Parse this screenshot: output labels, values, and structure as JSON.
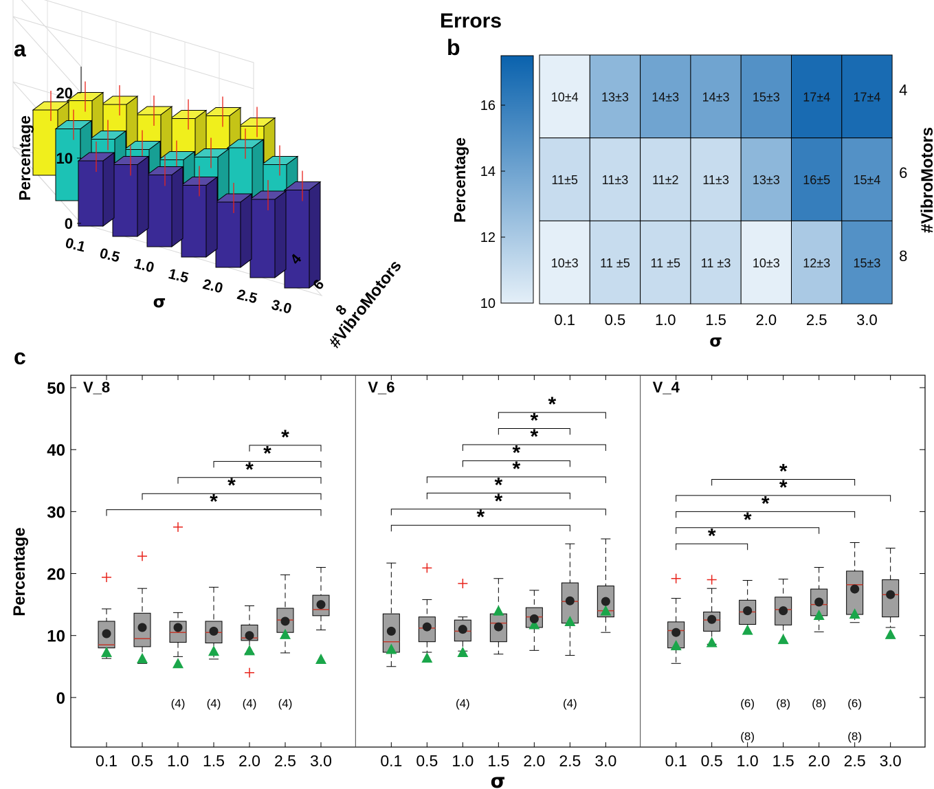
{
  "figure": {
    "title": "Errors",
    "panel_labels": [
      "a",
      "b",
      "c"
    ]
  },
  "chart_data": [
    {
      "panel": "a",
      "type": "bar",
      "subtype": "3d-bar",
      "categories": [
        "0.1",
        "0.5",
        "1.0",
        "1.5",
        "2.0",
        "2.5",
        "3.0"
      ],
      "xlabel": "σ",
      "ylabel": "#VibroMotors",
      "zlabel": "Percentage",
      "zlim": [
        0,
        20
      ],
      "zticks": [
        "0",
        "10",
        "20"
      ],
      "series": [
        {
          "name": "8",
          "color": "#3a2a96",
          "values": [
            10,
            11,
            11,
            11,
            10,
            12,
            15
          ]
        },
        {
          "name": "6",
          "color": "#1cc2b5",
          "values": [
            11,
            11,
            11,
            11,
            13,
            16,
            15
          ]
        },
        {
          "name": "4",
          "color": "#f0ef1c",
          "values": [
            10,
            13,
            14,
            14,
            15,
            17,
            17
          ]
        }
      ],
      "grid": true
    },
    {
      "panel": "b",
      "type": "heatmap",
      "x": [
        "0.1",
        "0.5",
        "1.0",
        "1.5",
        "2.0",
        "2.5",
        "3.0"
      ],
      "y": [
        "4",
        "6",
        "8"
      ],
      "xlabel": "σ",
      "ylabel_right": "#VibroMotors",
      "colorbar_label": "Percentage",
      "colorbar_range": [
        10,
        17.5
      ],
      "colorbar_ticks": [
        "10",
        "12",
        "14",
        "16"
      ],
      "means": [
        [
          10,
          13,
          14,
          14,
          15,
          17,
          17
        ],
        [
          11,
          11,
          11,
          11,
          13,
          16,
          15
        ],
        [
          10,
          11,
          11,
          11,
          10,
          12,
          15
        ]
      ],
      "cells": [
        [
          "10±4",
          "13±3",
          "14±3",
          "14±3",
          "15±3",
          "17±4",
          "17±4"
        ],
        [
          "11±5",
          "11±3",
          "11±2",
          "11±3",
          "13±3",
          "16±5",
          "15±4"
        ],
        [
          "10±3",
          "11 ±5",
          "11 ±5",
          "11 ±3",
          "10±3",
          "12±3",
          "15±3"
        ]
      ],
      "colorscale": [
        "#e4eff8",
        "#0a62ad"
      ]
    },
    {
      "panel": "c",
      "type": "box",
      "ylabel": "Percentage",
      "xlabel": "σ",
      "ylim": [
        -8,
        52
      ],
      "yticks": [
        "0",
        "10",
        "20",
        "30",
        "40",
        "50"
      ],
      "categories": [
        "0.1",
        "0.5",
        "1.0",
        "1.5",
        "2.0",
        "2.5",
        "3.0"
      ],
      "marker_colors": {
        "mean": "#222222",
        "triangle": "#1aa64a",
        "outlier": "#e8241c",
        "median": "#c0392b",
        "box": "#a0a0a0"
      },
      "panels": [
        {
          "name": "V_8",
          "boxes": [
            {
              "q1": 8,
              "median": 8.5,
              "q3": 12.3,
              "wlo": 6.3,
              "whi": 14.3,
              "mean": 10.3,
              "tri": 7.3,
              "outliers": [
                19.4
              ]
            },
            {
              "q1": 8.2,
              "median": 9.5,
              "q3": 13.6,
              "wlo": 5.5,
              "whi": 17.6,
              "mean": 11.3,
              "tri": 6.3,
              "outliers": [
                22.8
              ]
            },
            {
              "q1": 8.9,
              "median": 10.5,
              "q3": 12.3,
              "wlo": 6.6,
              "whi": 13.7,
              "mean": 11.3,
              "tri": 5.5,
              "outliers": [
                27.5
              ]
            },
            {
              "q1": 8.8,
              "median": 10.5,
              "q3": 12.3,
              "wlo": 6.2,
              "whi": 17.8,
              "mean": 10.7,
              "tri": 7.5,
              "outliers": []
            },
            {
              "q1": 9.2,
              "median": 9.6,
              "q3": 11.7,
              "wlo": 7.1,
              "whi": 14.8,
              "mean": 10.0,
              "tri": 7.6,
              "outliers": [
                4.0
              ]
            },
            {
              "q1": 10.5,
              "median": 12.5,
              "q3": 14.4,
              "wlo": 7.2,
              "whi": 19.8,
              "mean": 12.3,
              "tri": 10.2,
              "outliers": []
            },
            {
              "q1": 13.2,
              "median": 14.2,
              "q3": 16.5,
              "wlo": 10.9,
              "whi": 21.0,
              "mean": 15.0,
              "tri": 6.2,
              "outliers": []
            }
          ],
          "counts": [
            {
              "cat": "1.0",
              "lines": [
                "(4)"
              ]
            },
            {
              "cat": "1.5",
              "lines": [
                "(4)"
              ]
            },
            {
              "cat": "2.0",
              "lines": [
                "(4)"
              ]
            },
            {
              "cat": "2.5",
              "lines": [
                "(4)"
              ]
            }
          ],
          "brackets": [
            {
              "from": "0.1",
              "to": "3.0",
              "y": 30.3
            },
            {
              "from": "0.5",
              "to": "3.0",
              "y": 32.9
            },
            {
              "from": "1.0",
              "to": "3.0",
              "y": 35.5
            },
            {
              "from": "1.5",
              "to": "3.0",
              "y": 38.1
            },
            {
              "from": "2.0",
              "to": "3.0",
              "y": 40.7
            }
          ]
        },
        {
          "name": "V_6",
          "boxes": [
            {
              "q1": 7.3,
              "median": 9.0,
              "q3": 13.5,
              "wlo": 5.0,
              "whi": 21.7,
              "mean": 10.7,
              "tri": 7.8,
              "outliers": []
            },
            {
              "q1": 9.0,
              "median": 11.2,
              "q3": 13.0,
              "wlo": 7.3,
              "whi": 15.8,
              "mean": 11.4,
              "tri": 6.4,
              "outliers": [
                20.9
              ]
            },
            {
              "q1": 9.1,
              "median": 10.7,
              "q3": 12.5,
              "wlo": 7.5,
              "whi": 13.0,
              "mean": 11.0,
              "tri": 7.3,
              "outliers": [
                18.4
              ]
            },
            {
              "q1": 9.0,
              "median": 12.0,
              "q3": 13.5,
              "wlo": 7.0,
              "whi": 19.2,
              "mean": 11.4,
              "tri": 14.0,
              "outliers": []
            },
            {
              "q1": 11.3,
              "median": 13.0,
              "q3": 14.5,
              "wlo": 7.6,
              "whi": 17.3,
              "mean": 12.7,
              "tri": 11.8,
              "outliers": []
            },
            {
              "q1": 12.0,
              "median": 15.5,
              "q3": 18.5,
              "wlo": 6.8,
              "whi": 24.8,
              "mean": 15.6,
              "tri": 12.3,
              "outliers": []
            },
            {
              "q1": 13.0,
              "median": 14.0,
              "q3": 18.0,
              "wlo": 10.5,
              "whi": 25.6,
              "mean": 15.5,
              "tri": 14.0,
              "outliers": []
            }
          ],
          "counts": [
            {
              "cat": "1.0",
              "lines": [
                "(4)"
              ]
            },
            {
              "cat": "2.5",
              "lines": [
                "(4)"
              ]
            }
          ],
          "brackets": [
            {
              "from": "0.1",
              "to": "2.5",
              "y": 27.8
            },
            {
              "from": "0.1",
              "to": "3.0",
              "y": 30.4
            },
            {
              "from": "0.5",
              "to": "2.5",
              "y": 33.0
            },
            {
              "from": "0.5",
              "to": "3.0",
              "y": 35.6
            },
            {
              "from": "1.0",
              "to": "2.5",
              "y": 38.2
            },
            {
              "from": "1.0",
              "to": "3.0",
              "y": 40.8
            },
            {
              "from": "1.5",
              "to": "2.5",
              "y": 43.4
            },
            {
              "from": "1.5",
              "to": "3.0",
              "y": 46.0
            }
          ]
        },
        {
          "name": "V_4",
          "boxes": [
            {
              "q1": 8.0,
              "median": 10.8,
              "q3": 12.2,
              "wlo": 5.5,
              "whi": 16.0,
              "mean": 10.5,
              "tri": 8.4,
              "outliers": [
                19.2
              ]
            },
            {
              "q1": 10.7,
              "median": 12.5,
              "q3": 13.8,
              "wlo": 8.6,
              "whi": 17.6,
              "mean": 12.6,
              "tri": 8.9,
              "outliers": [
                19.0
              ]
            },
            {
              "q1": 11.8,
              "median": 13.8,
              "q3": 15.7,
              "wlo": 10.2,
              "whi": 18.9,
              "mean": 14.0,
              "tri": 10.9,
              "outliers": []
            },
            {
              "q1": 11.7,
              "median": 14.2,
              "q3": 16.2,
              "wlo": 8.8,
              "whi": 19.1,
              "mean": 14.0,
              "tri": 9.4,
              "outliers": []
            },
            {
              "q1": 13.2,
              "median": 15.0,
              "q3": 17.5,
              "wlo": 10.6,
              "whi": 21.0,
              "mean": 15.4,
              "tri": 13.3,
              "outliers": []
            },
            {
              "q1": 13.4,
              "median": 18.2,
              "q3": 20.4,
              "wlo": 12.1,
              "whi": 25.0,
              "mean": 17.5,
              "tri": 13.5,
              "outliers": []
            },
            {
              "q1": 13.0,
              "median": 16.6,
              "q3": 19.0,
              "wlo": 11.3,
              "whi": 24.1,
              "mean": 16.6,
              "tri": 10.2,
              "outliers": []
            }
          ],
          "counts": [
            {
              "cat": "1.0",
              "lines": [
                "(6)",
                "(8)"
              ]
            },
            {
              "cat": "1.5",
              "lines": [
                "(8)"
              ]
            },
            {
              "cat": "2.0",
              "lines": [
                "(8)"
              ]
            },
            {
              "cat": "2.5",
              "lines": [
                "(6)",
                "(8)"
              ]
            }
          ],
          "brackets": [
            {
              "from": "0.1",
              "to": "1.0",
              "y": 24.8
            },
            {
              "from": "0.1",
              "to": "2.0",
              "y": 27.4
            },
            {
              "from": "0.1",
              "to": "2.5",
              "y": 30.0
            },
            {
              "from": "0.1",
              "to": "3.0",
              "y": 32.6
            },
            {
              "from": "0.5",
              "to": "2.5",
              "y": 35.2
            }
          ]
        }
      ]
    }
  ]
}
